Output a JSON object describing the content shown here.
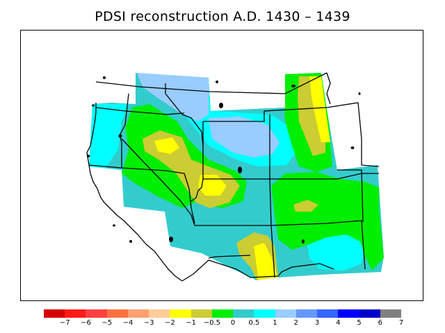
{
  "title": "PDSI reconstruction A.D. 1430 – 1439",
  "legend": {
    "colors": [
      "#d40000",
      "#ff1a1a",
      "#ff4040",
      "#ff7040",
      "#ffa070",
      "#ffcc99",
      "#ffff00",
      "#cccc33",
      "#00ee00",
      "#33cccc",
      "#00ffff",
      "#99ccff",
      "#6699ff",
      "#3366ff",
      "#0000ff",
      "#0000cc",
      "#808080"
    ],
    "ticks": [
      "−7",
      "−6",
      "−5",
      "−4",
      "−3",
      "−2",
      "−1",
      "−0.5",
      "0",
      "0.5",
      "1",
      "2",
      "3",
      "4",
      "5",
      "6",
      "7"
    ]
  },
  "map_colors": {
    "land_base": "#33cccc",
    "zero_to_half": "#33cccc",
    "half_to_one": "#00ffff",
    "one_to_two": "#99ccff",
    "neg_half_to_zero": "#00ee00",
    "neg_one_to_neg_half": "#cccc33",
    "neg_two_to_neg_one": "#ffff00"
  }
}
